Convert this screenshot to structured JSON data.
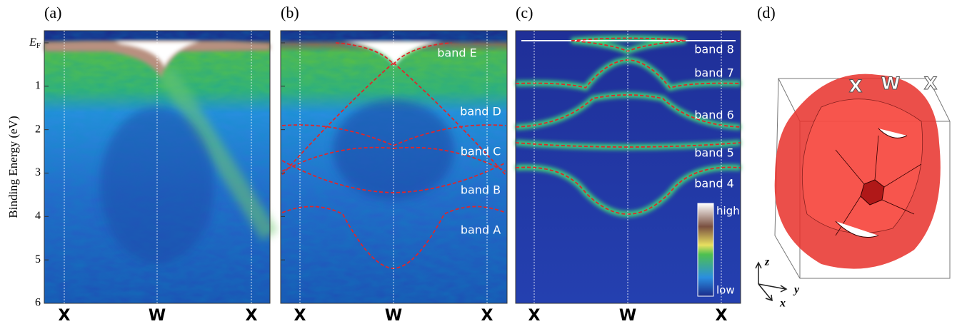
{
  "figure": {
    "y_axis": {
      "label": "Binding Energy (eV)",
      "ticks": [
        {
          "value": 0,
          "label": "E",
          "subscript": "F"
        },
        1,
        2,
        3,
        4,
        5,
        6
      ],
      "lim": [
        0,
        6
      ]
    },
    "panels": [
      {
        "label": "(a)",
        "x_labels": [
          "X",
          "W",
          "X"
        ]
      },
      {
        "label": "(b)",
        "x_labels": [
          "X",
          "W",
          "X"
        ],
        "bands": [
          "band E",
          "band D",
          "band C",
          "band B",
          "band A"
        ]
      },
      {
        "label": "(c)",
        "x_labels": [
          "X",
          "W",
          "X"
        ],
        "bands": [
          "band 8",
          "band 7",
          "band 6",
          "band 5",
          "band 4"
        ],
        "colorbar": {
          "high": "high",
          "low": "low"
        }
      },
      {
        "label": "(d)",
        "points": [
          "X",
          "W",
          "X"
        ],
        "axes": [
          "z",
          "y",
          "x"
        ]
      }
    ]
  }
}
